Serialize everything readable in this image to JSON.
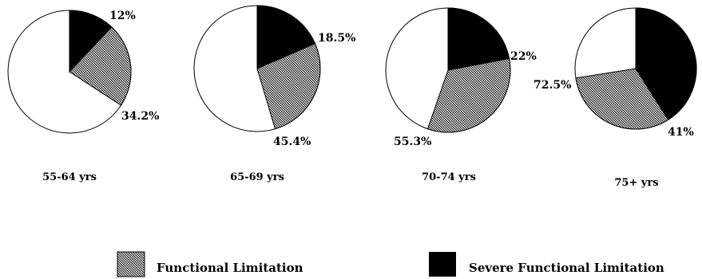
{
  "chart_data": {
    "type": "pie",
    "title": "",
    "series_names": [
      "Functional Limitation",
      "Severe Functional Limitation"
    ],
    "colors": {
      "functional": "#8c8c8c",
      "severe": "#000000",
      "none": "#ffffff"
    },
    "pies": [
      {
        "category": "55-64 yrs",
        "severe": 12,
        "functional": 34.2,
        "severe_label": "12%",
        "functional_label": "34.2%"
      },
      {
        "category": "65-69 yrs",
        "severe": 18.5,
        "functional": 45.4,
        "severe_label": "18.5%",
        "functional_label": "45.4%"
      },
      {
        "category": "70-74 yrs",
        "severe": 22,
        "functional": 55.3,
        "severe_label": "22%",
        "functional_label": "55.3%"
      },
      {
        "category": "75+ yrs",
        "severe": 41,
        "functional": 72.5,
        "severe_label": "41%",
        "functional_label": "72.5%"
      }
    ],
    "legend": {
      "position": "bottom",
      "items": [
        {
          "name": "Functional Limitation",
          "swatch": "functional"
        },
        {
          "name": "Severe Functional Limitation",
          "swatch": "severe"
        }
      ]
    }
  }
}
